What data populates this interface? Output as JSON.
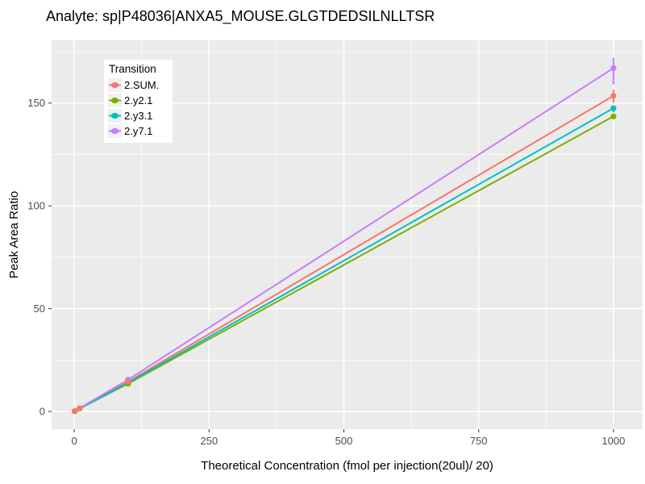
{
  "chart_data": {
    "type": "line",
    "title": "Analyte: sp|P48036|ANXA5_MOUSE.GLGTDEDSILNLLTSR",
    "xlabel": "Theoretical Concentration (fmol per injection(20ul)/ 20)",
    "ylabel": "Peak Area Ratio",
    "legend_title": "Transition",
    "legend_position": "inside-top-left",
    "grid": "major-and-minor-white-on-grey",
    "panel_bg": "#EBEBEB",
    "grid_color": "#FFFFFF",
    "tick_color": "#333333",
    "tick_label_color": "#4D4D4D",
    "x_ticks": [
      0,
      250,
      500,
      750,
      1000
    ],
    "y_ticks": [
      0,
      50,
      100,
      150
    ],
    "x_minor_ticks": [
      125,
      375,
      625,
      875
    ],
    "y_minor_ticks": [
      25,
      75,
      125,
      175
    ],
    "xlim": [
      -42,
      1054
    ],
    "ylim": [
      -8.6,
      180.5
    ],
    "x": [
      1,
      10,
      100,
      1000
    ],
    "series": [
      {
        "name": "2.SUM.",
        "color": "#F8766D",
        "values": [
          0.15,
          1.5,
          14.5,
          153.5
        ],
        "errors": [
          {
            "x": 1000,
            "lo": 150,
            "hi": 156.5
          }
        ]
      },
      {
        "name": "2.y2.1",
        "color": "#7CAE00",
        "values": [
          0.14,
          1.4,
          13.5,
          143.5
        ],
        "errors": []
      },
      {
        "name": "2.y3.1",
        "color": "#00BFC4",
        "values": [
          0.15,
          1.45,
          14.0,
          147.5
        ],
        "errors": [
          {
            "x": 1000,
            "lo": 145.5,
            "hi": 148.5
          }
        ]
      },
      {
        "name": "2.y7.1",
        "color": "#C77CFF",
        "values": [
          0.16,
          1.6,
          15.5,
          167.0
        ],
        "errors": [
          {
            "x": 1000,
            "lo": 159,
            "hi": 172
          }
        ]
      }
    ]
  }
}
